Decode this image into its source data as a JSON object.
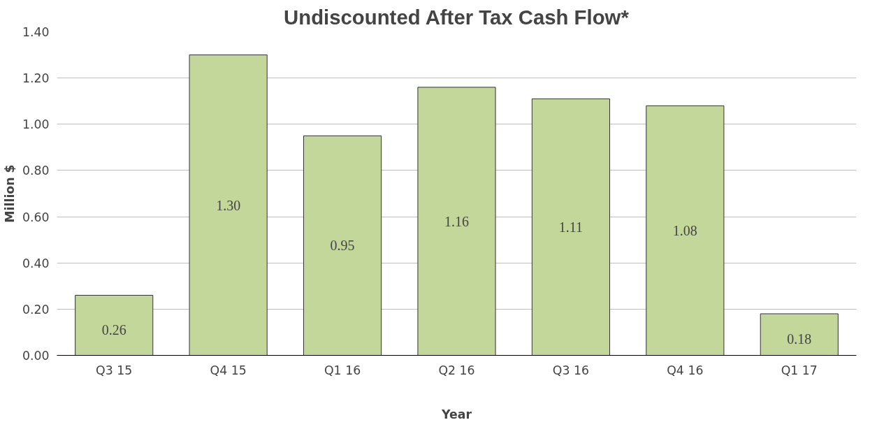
{
  "chart_data": {
    "type": "bar",
    "title": "Undiscounted After Tax Cash Flow*",
    "xlabel": "Year",
    "ylabel": "Million $",
    "categories": [
      "Q3 15",
      "Q4 15",
      "Q1 16",
      "Q2 16",
      "Q3 16",
      "Q4 16",
      "Q1 17"
    ],
    "values": [
      0.26,
      1.3,
      0.95,
      1.16,
      1.11,
      1.08,
      0.18
    ],
    "value_labels": [
      "0.26",
      "1.30",
      "0.95",
      "1.16",
      "1.11",
      "1.08",
      "0.18"
    ],
    "color": "#c4d79b",
    "ylim": [
      0,
      1.4
    ],
    "yticks": [
      {
        "value": 0,
        "label": "0.00"
      },
      {
        "value": 0.2,
        "label": "0.20"
      },
      {
        "value": 0.4,
        "label": "0.40"
      },
      {
        "value": 0.6,
        "label": "0.60"
      },
      {
        "value": 0.8,
        "label": "0.80"
      },
      {
        "value": 1.0,
        "label": "1.00"
      },
      {
        "value": 1.2,
        "label": "1.20"
      },
      {
        "value": 1.4,
        "label": "1.40"
      }
    ],
    "grid": "y"
  }
}
